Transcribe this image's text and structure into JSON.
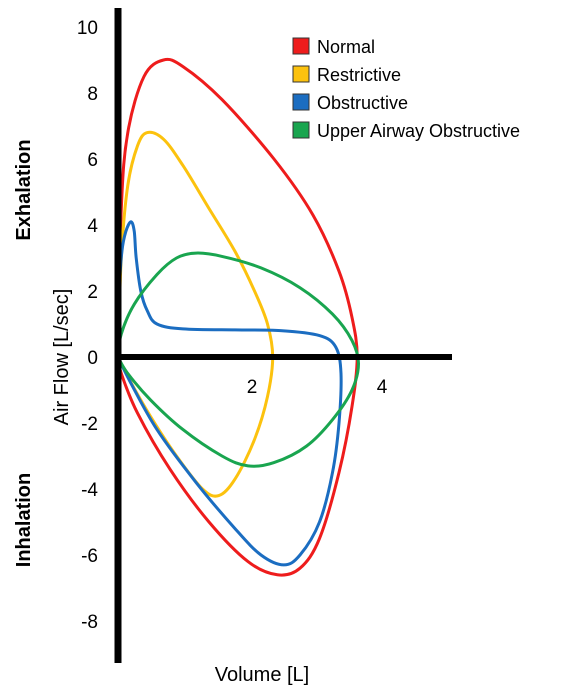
{
  "chart_data": {
    "type": "line",
    "title": "",
    "xlabel": "Volume [L]",
    "ylabel": "Air Flow [L/sec]",
    "xlim": [
      0,
      5.6
    ],
    "ylim": [
      -9.2,
      10.6
    ],
    "x_ticks": [
      {
        "value": 2,
        "label": "2"
      },
      {
        "value": 4,
        "label": "4"
      }
    ],
    "y_ticks": [
      {
        "value": 10,
        "label": "10"
      },
      {
        "value": 8,
        "label": "8"
      },
      {
        "value": 6,
        "label": "6"
      },
      {
        "value": 4,
        "label": "4"
      },
      {
        "value": 2,
        "label": "2"
      },
      {
        "value": 0,
        "label": "0"
      },
      {
        "value": -2,
        "label": "-2"
      },
      {
        "value": -4,
        "label": "-4"
      },
      {
        "value": -6,
        "label": "-6"
      },
      {
        "value": -8,
        "label": "-8"
      }
    ],
    "annotations": {
      "exhalation": "Exhalation",
      "inhalation": "Inhalation"
    },
    "legend_position": "top-right",
    "grid": false,
    "series": [
      {
        "name": "Normal",
        "color": "#ee1c1c",
        "points": [
          [
            0,
            0
          ],
          [
            0.05,
            4.5
          ],
          [
            0.15,
            6.8
          ],
          [
            0.4,
            8.5
          ],
          [
            0.7,
            9.0
          ],
          [
            1.0,
            8.8
          ],
          [
            1.6,
            7.8
          ],
          [
            2.4,
            6.0
          ],
          [
            3.0,
            4.3
          ],
          [
            3.4,
            2.6
          ],
          [
            3.6,
            1.2
          ],
          [
            3.68,
            0
          ],
          [
            3.6,
            -1.5
          ],
          [
            3.4,
            -3.5
          ],
          [
            3.1,
            -5.5
          ],
          [
            2.8,
            -6.4
          ],
          [
            2.45,
            -6.6
          ],
          [
            2.0,
            -6.2
          ],
          [
            1.4,
            -5.0
          ],
          [
            0.8,
            -3.4
          ],
          [
            0.3,
            -1.7
          ],
          [
            0.05,
            -0.5
          ],
          [
            0,
            0
          ]
        ]
      },
      {
        "name": "Restrictive",
        "color": "#fcc20e",
        "points": [
          [
            0,
            0
          ],
          [
            0.05,
            3.0
          ],
          [
            0.15,
            5.2
          ],
          [
            0.3,
            6.4
          ],
          [
            0.45,
            6.8
          ],
          [
            0.7,
            6.6
          ],
          [
            1.0,
            5.8
          ],
          [
            1.4,
            4.5
          ],
          [
            1.8,
            3.2
          ],
          [
            2.1,
            2.0
          ],
          [
            2.3,
            1.0
          ],
          [
            2.38,
            0
          ],
          [
            2.3,
            -1.2
          ],
          [
            2.1,
            -2.5
          ],
          [
            1.8,
            -3.7
          ],
          [
            1.55,
            -4.2
          ],
          [
            1.3,
            -4.0
          ],
          [
            0.9,
            -3.0
          ],
          [
            0.5,
            -1.8
          ],
          [
            0.15,
            -0.6
          ],
          [
            0,
            0
          ]
        ]
      },
      {
        "name": "Obstructive",
        "color": "#1b6dc1",
        "points": [
          [
            0,
            0
          ],
          [
            0.02,
            2.0
          ],
          [
            0.06,
            3.2
          ],
          [
            0.12,
            3.8
          ],
          [
            0.2,
            4.1
          ],
          [
            0.25,
            3.8
          ],
          [
            0.28,
            3.0
          ],
          [
            0.35,
            2.0
          ],
          [
            0.45,
            1.4
          ],
          [
            0.6,
            1.0
          ],
          [
            1.0,
            0.85
          ],
          [
            1.8,
            0.82
          ],
          [
            2.5,
            0.8
          ],
          [
            3.1,
            0.65
          ],
          [
            3.35,
            0.3
          ],
          [
            3.43,
            -0.5
          ],
          [
            3.4,
            -2.0
          ],
          [
            3.3,
            -3.5
          ],
          [
            3.1,
            -5.0
          ],
          [
            2.8,
            -6.0
          ],
          [
            2.55,
            -6.3
          ],
          [
            2.2,
            -6.0
          ],
          [
            1.8,
            -5.2
          ],
          [
            1.2,
            -3.8
          ],
          [
            0.6,
            -2.2
          ],
          [
            0.2,
            -0.8
          ],
          [
            0,
            0
          ]
        ]
      },
      {
        "name": "Upper Airway Obstructive",
        "color": "#19a54f",
        "points": [
          [
            0,
            0
          ],
          [
            0.05,
            0.7
          ],
          [
            0.25,
            1.6
          ],
          [
            0.6,
            2.5
          ],
          [
            0.9,
            3.0
          ],
          [
            1.2,
            3.15
          ],
          [
            1.6,
            3.05
          ],
          [
            2.2,
            2.7
          ],
          [
            2.8,
            2.1
          ],
          [
            3.3,
            1.3
          ],
          [
            3.6,
            0.5
          ],
          [
            3.7,
            -0.2
          ],
          [
            3.6,
            -1.0
          ],
          [
            3.3,
            -1.9
          ],
          [
            2.9,
            -2.7
          ],
          [
            2.4,
            -3.2
          ],
          [
            2.0,
            -3.3
          ],
          [
            1.6,
            -3.0
          ],
          [
            1.0,
            -2.2
          ],
          [
            0.5,
            -1.3
          ],
          [
            0.15,
            -0.5
          ],
          [
            0,
            0
          ]
        ]
      }
    ]
  }
}
